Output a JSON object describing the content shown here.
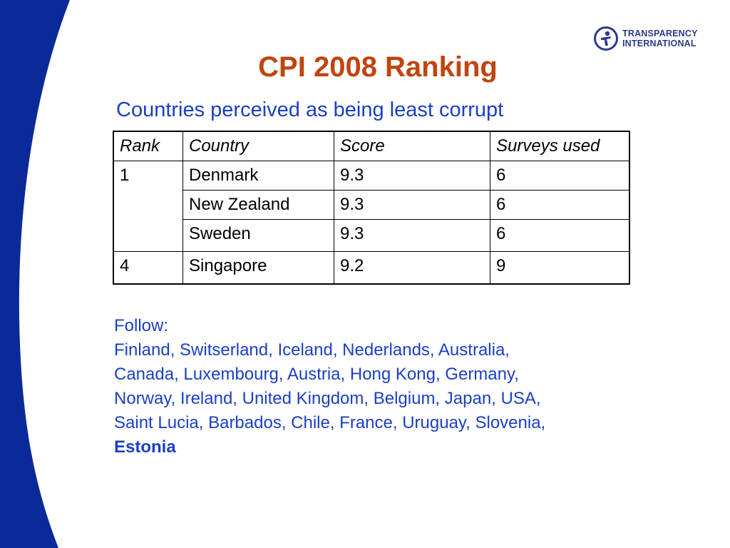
{
  "slide": {
    "title": "CPI 2008 Ranking",
    "subtitle": "Countries perceived as being least corrupt",
    "logo": {
      "line1": "TRANSPARENCY",
      "line2": "INTERNATIONAL",
      "icon": "globe-person-icon",
      "color": "#2b3a8c"
    },
    "colors": {
      "band": "#0a2a9a",
      "title": "#c1440e",
      "accent_text": "#1b3fc4"
    },
    "table": {
      "headers": [
        "Rank",
        "Country",
        "Score",
        "Surveys used"
      ],
      "rows": [
        {
          "rank": "1",
          "country": "Denmark",
          "score": "9.3",
          "surveys": "6"
        },
        {
          "rank": "",
          "country": "New Zealand",
          "score": "9.3",
          "surveys": "6"
        },
        {
          "rank": "",
          "country": "Sweden",
          "score": "9.3",
          "surveys": "6"
        },
        {
          "rank": "4",
          "country": "Singapore",
          "score": "9.2",
          "surveys": "9"
        }
      ]
    },
    "follow": {
      "label": "Follow:",
      "lines": [
        "Finland, Switserland, Iceland, Nederlands, Australia,",
        "Canada, Luxembourg, Austria, Hong Kong, Germany,",
        "Norway, Ireland, United Kingdom, Belgium, Japan, USA,",
        "Saint Lucia, Barbados, Chile, France, Uruguay, Slovenia,"
      ],
      "highlight": "Estonia"
    }
  }
}
